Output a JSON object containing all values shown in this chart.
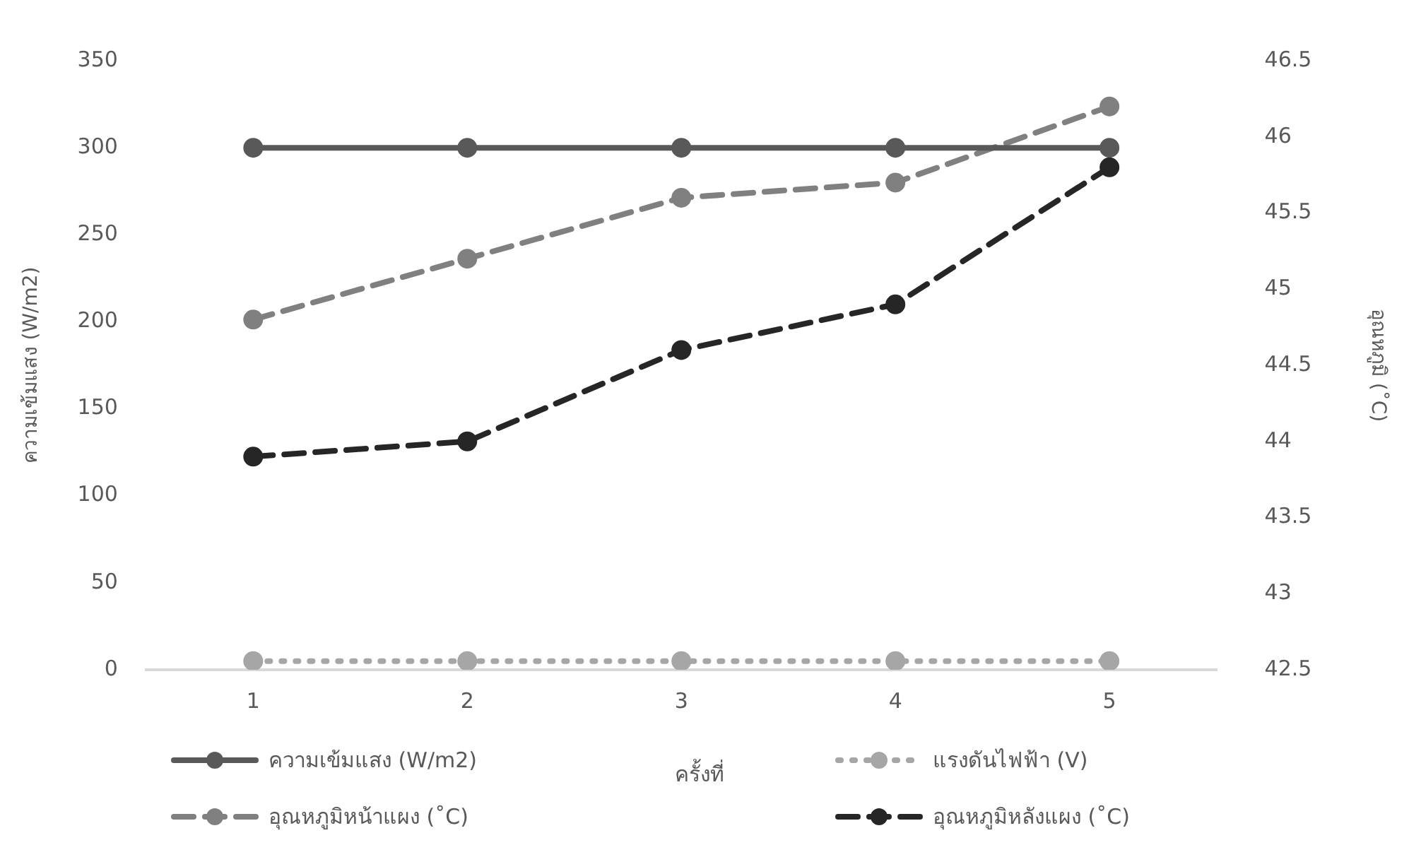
{
  "chart_data": {
    "type": "line",
    "xlabel": "ครั้งที่",
    "ylabel": "ความเข้มแสง (W/m2)",
    "y2label": "อุณหภูมิ (˚C)",
    "categories": [
      "1",
      "2",
      "3",
      "4",
      "5"
    ],
    "series": [
      {
        "name": "ความเข้มแสง (W/m2)",
        "color": "#595959",
        "line_style": "solid",
        "values": [
          300,
          300,
          300,
          300,
          300
        ]
      },
      {
        "name": "แรงดันไฟฟ้า (V)",
        "color": "#a6a6a6",
        "line_style": "dotted",
        "values": [
          5,
          5,
          5,
          5,
          5
        ]
      },
      {
        "name": "อุณหภูมิหน้าแผง (˚C)",
        "color": "#808080",
        "line_style": "dashed",
        "axis": "y2",
        "values": [
          44.8,
          45.2,
          45.6,
          45.7,
          46.2
        ]
      },
      {
        "name": "อุณหภูมิหลังแผง (˚C)",
        "color": "#262626",
        "line_style": "dashed",
        "axis": "y2",
        "values": [
          43.9,
          44.0,
          44.6,
          44.9,
          45.8
        ]
      }
    ],
    "ylim": [
      0,
      350
    ],
    "yticks": [
      0,
      50,
      100,
      150,
      200,
      250,
      300,
      350
    ],
    "y2lim": [
      42.5,
      46.5
    ],
    "y2ticks": [
      42.5,
      43,
      43.5,
      44,
      44.5,
      45,
      45.5,
      46,
      46.5
    ],
    "grid": false,
    "legend": "bottom",
    "marker": "circle"
  }
}
